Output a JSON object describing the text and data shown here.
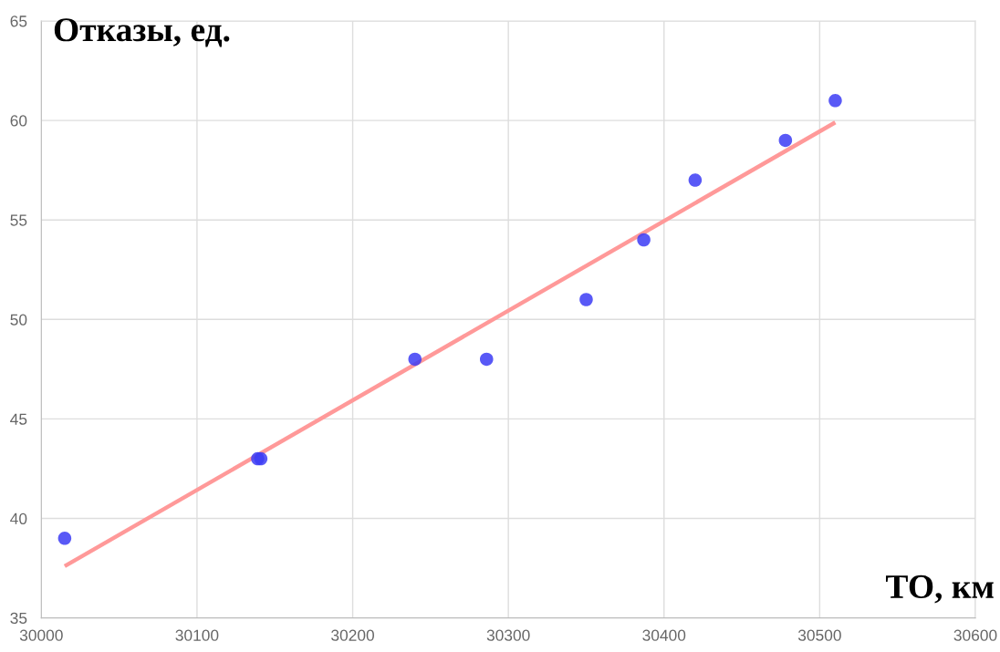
{
  "chart_data": {
    "type": "scatter",
    "xlabel": "ТО, км",
    "ylabel": "Отказы, ед.",
    "xlim": [
      30000,
      30600
    ],
    "xticks": [
      30000,
      30100,
      30200,
      30300,
      30400,
      30500,
      30600
    ],
    "ylim": [
      35,
      65
    ],
    "yticks": [
      35,
      40,
      45,
      50,
      55,
      60,
      65
    ],
    "grid": true,
    "series": [
      {
        "marker": "circle",
        "color": "#3c3cf5",
        "x": [
          30015,
          30139,
          30141,
          30240,
          30286,
          30350,
          30387,
          30420,
          30478,
          30510
        ],
        "values": [
          39,
          43,
          43,
          48,
          48,
          51,
          54,
          57,
          59,
          61
        ]
      },
      {
        "type": "line",
        "marker": "none",
        "line_style": "solid",
        "color": "#ff9999",
        "x": [
          30015,
          30510
        ],
        "values": [
          37.6,
          59.9
        ]
      }
    ]
  }
}
